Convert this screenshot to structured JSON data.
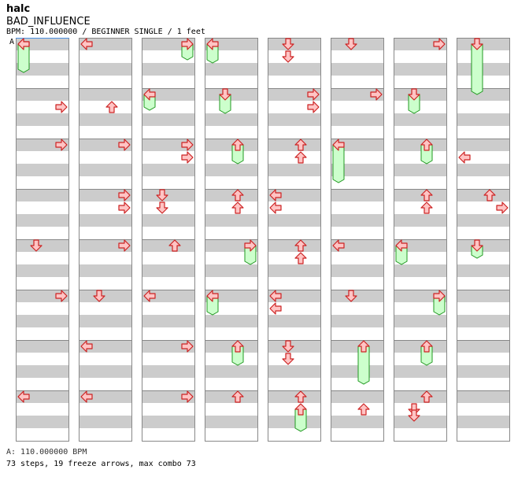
{
  "header": {
    "author": "halc",
    "title": "BAD_INFLUENCE",
    "info": "BPM: 110.000000 / BEGINNER SINGLE / 1 feet",
    "marker": "A"
  },
  "footer": {
    "bpm_line": "A: 110.000000 BPM",
    "summary": "73 steps, 19 freeze arrows, max combo 73"
  },
  "colors": {
    "stripe": "#cccccc",
    "lane_bg": "#ffffff",
    "border": "#888888",
    "marker_line": "#4a90e2",
    "arrow_fill": "#ffc4c4",
    "arrow_stroke": "#cc2222",
    "freeze_fill": "#ccffcc",
    "freeze_stroke": "#229922"
  },
  "chart": {
    "columns": 8,
    "measures_per_column": 8,
    "lanes": [
      "left",
      "down",
      "up",
      "right"
    ]
  },
  "notes": [
    {
      "measure": 0,
      "beat": 0,
      "lane": "left"
    },
    {
      "measure": 0,
      "beat": 0,
      "lane": "left",
      "hold_end": 2
    },
    {
      "measure": 1,
      "beat": 1,
      "lane": "right"
    },
    {
      "measure": 2,
      "beat": 0,
      "lane": "right"
    },
    {
      "measure": 4,
      "beat": 0,
      "lane": "down"
    },
    {
      "measure": 5,
      "beat": 0,
      "lane": "right"
    },
    {
      "measure": 7,
      "beat": 0,
      "lane": "left"
    },
    {
      "measure": 8,
      "beat": 0,
      "lane": "left"
    },
    {
      "measure": 9,
      "beat": 1,
      "lane": "up"
    },
    {
      "measure": 10,
      "beat": 0,
      "lane": "right"
    },
    {
      "measure": 11,
      "beat": 0,
      "lane": "right"
    },
    {
      "measure": 11,
      "beat": 1,
      "lane": "right"
    },
    {
      "measure": 12,
      "beat": 0,
      "lane": "right"
    },
    {
      "measure": 13,
      "beat": 0,
      "lane": "down"
    },
    {
      "measure": 14,
      "beat": 0,
      "lane": "left"
    },
    {
      "measure": 15,
      "beat": 0,
      "lane": "left"
    },
    {
      "measure": 16,
      "beat": 0,
      "lane": "right",
      "hold_end": 1
    },
    {
      "measure": 17,
      "beat": 0,
      "lane": "left",
      "hold_end": 1
    },
    {
      "measure": 18,
      "beat": 0,
      "lane": "right"
    },
    {
      "measure": 18,
      "beat": 1,
      "lane": "right"
    },
    {
      "measure": 19,
      "beat": 0,
      "lane": "down"
    },
    {
      "measure": 19,
      "beat": 1,
      "lane": "down"
    },
    {
      "measure": 20,
      "beat": 0,
      "lane": "up"
    },
    {
      "measure": 21,
      "beat": 0,
      "lane": "left"
    },
    {
      "measure": 22,
      "beat": 0,
      "lane": "right"
    },
    {
      "measure": 23,
      "beat": 0,
      "lane": "right"
    },
    {
      "measure": 24,
      "beat": 0,
      "lane": "left",
      "hold_end": 1.25
    },
    {
      "measure": 25,
      "beat": 0,
      "lane": "down",
      "hold_end": 1.25
    },
    {
      "measure": 26,
      "beat": 0,
      "lane": "up",
      "hold_end": 1.25
    },
    {
      "measure": 27,
      "beat": 0,
      "lane": "up"
    },
    {
      "measure": 27,
      "beat": 1,
      "lane": "up"
    },
    {
      "measure": 28,
      "beat": 0,
      "lane": "right",
      "hold_end": 1.25
    },
    {
      "measure": 29,
      "beat": 0,
      "lane": "left",
      "hold_end": 1.25
    },
    {
      "measure": 30,
      "beat": 0,
      "lane": "up",
      "hold_end": 1.25
    },
    {
      "measure": 31,
      "beat": 0,
      "lane": "up"
    },
    {
      "measure": 32,
      "beat": 0,
      "lane": "down"
    },
    {
      "measure": 32,
      "beat": 1,
      "lane": "down"
    },
    {
      "measure": 33,
      "beat": 0,
      "lane": "right"
    },
    {
      "measure": 33,
      "beat": 1,
      "lane": "right"
    },
    {
      "measure": 34,
      "beat": 0,
      "lane": "up"
    },
    {
      "measure": 34,
      "beat": 1,
      "lane": "up"
    },
    {
      "measure": 35,
      "beat": 0,
      "lane": "left"
    },
    {
      "measure": 35,
      "beat": 1,
      "lane": "left"
    },
    {
      "measure": 36,
      "beat": 0,
      "lane": "up"
    },
    {
      "measure": 36,
      "beat": 1,
      "lane": "up"
    },
    {
      "measure": 37,
      "beat": 0,
      "lane": "left"
    },
    {
      "measure": 37,
      "beat": 1,
      "lane": "left"
    },
    {
      "measure": 38,
      "beat": 0,
      "lane": "down"
    },
    {
      "measure": 38,
      "beat": 1,
      "lane": "down"
    },
    {
      "measure": 39,
      "beat": 0,
      "lane": "up"
    },
    {
      "measure": 39,
      "beat": 1,
      "lane": "up",
      "hold_end": 1.5
    },
    {
      "measure": 40,
      "beat": 0,
      "lane": "down"
    },
    {
      "measure": 41,
      "beat": 0,
      "lane": "right"
    },
    {
      "measure": 42,
      "beat": 0,
      "lane": "left",
      "hold_end": 2.75
    },
    {
      "measure": 44,
      "beat": 0,
      "lane": "left"
    },
    {
      "measure": 45,
      "beat": 0,
      "lane": "down"
    },
    {
      "measure": 46,
      "beat": 0,
      "lane": "up",
      "hold_end": 2.75
    },
    {
      "measure": 47,
      "beat": 1,
      "lane": "up"
    },
    {
      "measure": 48,
      "beat": 0,
      "lane": "right"
    },
    {
      "measure": 49,
      "beat": 0,
      "lane": "down",
      "hold_end": 1.25
    },
    {
      "measure": 50,
      "beat": 0,
      "lane": "up",
      "hold_end": 1.25
    },
    {
      "measure": 51,
      "beat": 0,
      "lane": "up"
    },
    {
      "measure": 51,
      "beat": 1,
      "lane": "up"
    },
    {
      "measure": 52,
      "beat": 0,
      "lane": "left",
      "hold_end": 1.25
    },
    {
      "measure": 53,
      "beat": 0,
      "lane": "right",
      "hold_end": 1.25
    },
    {
      "measure": 54,
      "beat": 0,
      "lane": "up",
      "hold_end": 1.25
    },
    {
      "measure": 55,
      "beat": 0,
      "lane": "up"
    },
    {
      "measure": 55,
      "beat": 1,
      "lane": "down"
    },
    {
      "measure": 55,
      "beat": 1.5,
      "lane": "down"
    },
    {
      "measure": 56,
      "beat": 0,
      "lane": "down",
      "hold_end": 3.75
    },
    {
      "measure": 58,
      "beat": 1,
      "lane": "left"
    },
    {
      "measure": 59,
      "beat": 0,
      "lane": "up"
    },
    {
      "measure": 59,
      "beat": 1,
      "lane": "right"
    },
    {
      "measure": 60,
      "beat": 0,
      "lane": "down",
      "hold_end": 0.75
    }
  ]
}
